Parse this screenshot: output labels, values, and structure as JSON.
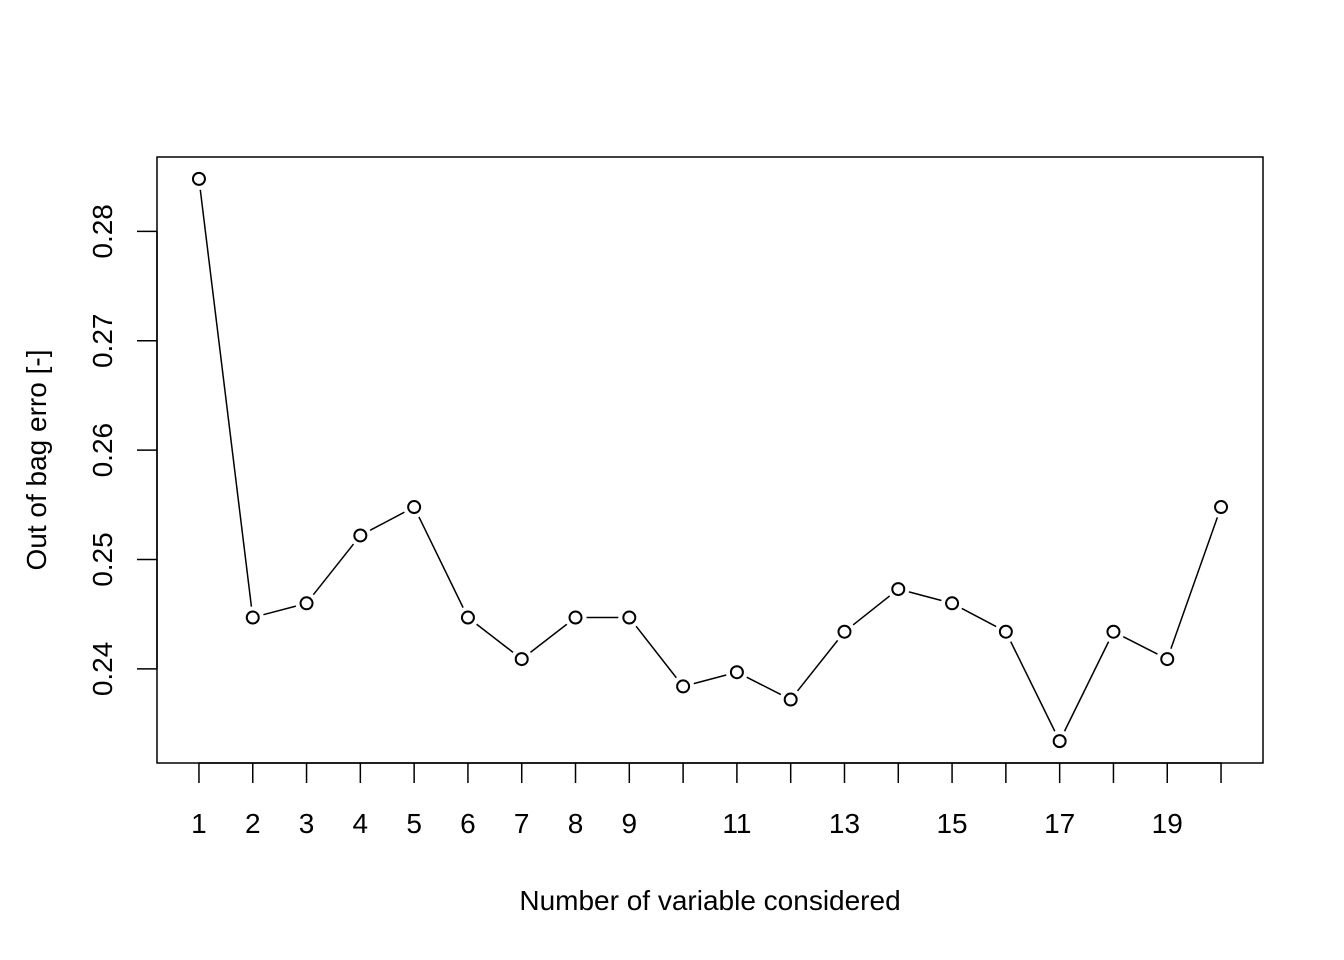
{
  "chart_data": {
    "type": "line",
    "title": "",
    "xlabel": "Number of variable considered",
    "ylabel": "Out of bag erro [-]",
    "x": [
      1,
      2,
      3,
      4,
      5,
      6,
      7,
      8,
      9,
      10,
      11,
      12,
      13,
      14,
      15,
      16,
      17,
      18,
      19,
      20
    ],
    "series": [
      {
        "values": [
          0.2848,
          0.2447,
          0.246,
          0.2522,
          0.2548,
          0.2447,
          0.2409,
          0.2447,
          0.2447,
          0.2384,
          0.2397,
          0.2372,
          0.2434,
          0.2473,
          0.246,
          0.2434,
          0.2334,
          0.2434,
          0.2409,
          0.2548
        ]
      }
    ],
    "xticks": [
      1,
      2,
      3,
      4,
      5,
      6,
      7,
      8,
      9,
      10,
      11,
      12,
      13,
      14,
      15,
      16,
      17,
      18,
      19,
      20
    ],
    "xtick_labels": [
      "1",
      "2",
      "3",
      "4",
      "5",
      "6",
      "7",
      "8",
      "9",
      "",
      "11",
      "",
      "13",
      "",
      "15",
      "",
      "17",
      "",
      "19",
      ""
    ],
    "yticks": [
      0.24,
      0.25,
      0.26,
      0.27,
      0.28
    ],
    "ytick_labels": [
      "0.24",
      "0.25",
      "0.26",
      "0.27",
      "0.28"
    ],
    "xlim": [
      0.22,
      20.78
    ],
    "ylim": [
      0.2314,
      0.2868
    ],
    "grid": false,
    "marker": "open-circle",
    "line_color": "#000000"
  }
}
